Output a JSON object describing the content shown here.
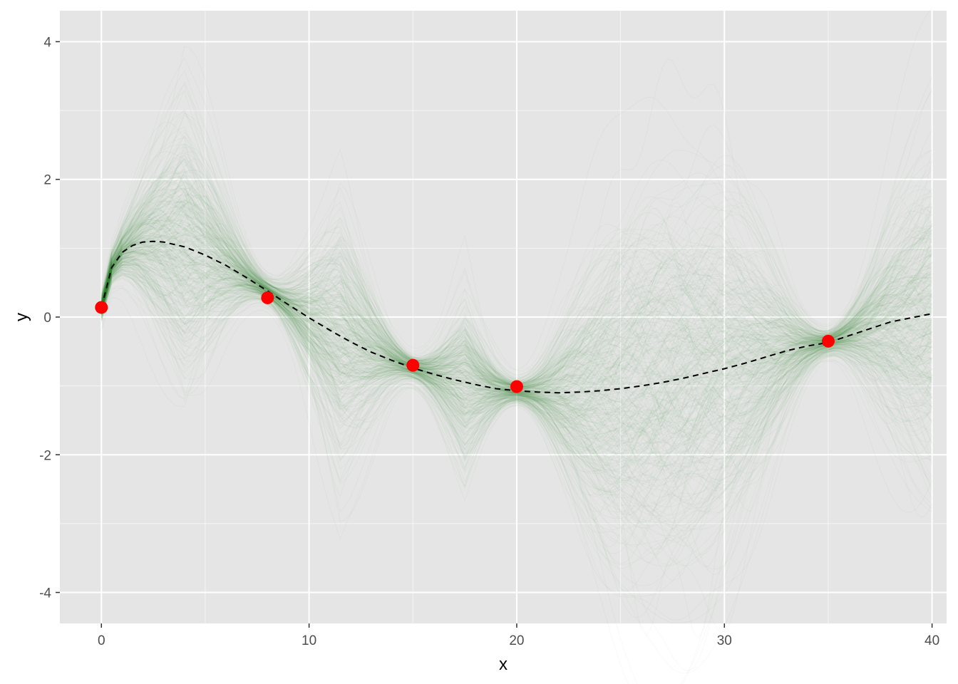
{
  "chart_data": {
    "type": "line",
    "title": "",
    "xlabel": "x",
    "ylabel": "y",
    "xlim": [
      -2,
      40.7
    ],
    "ylim": [
      -4.45,
      4.45
    ],
    "x_ticks": [
      {
        "value": 0,
        "label": "0"
      },
      {
        "value": 10,
        "label": "10"
      },
      {
        "value": 20,
        "label": "20"
      },
      {
        "value": 30,
        "label": "30"
      },
      {
        "value": 40,
        "label": "40"
      }
    ],
    "y_ticks": [
      {
        "value": -4,
        "label": "-4"
      },
      {
        "value": -2,
        "label": "-2"
      },
      {
        "value": 0,
        "label": "0"
      },
      {
        "value": 2,
        "label": "2"
      },
      {
        "value": 4,
        "label": "4"
      }
    ],
    "grid": true,
    "legend": "none",
    "colors": {
      "panel": "#e5e5e5",
      "grid_major": "#ffffff",
      "samples": "#2e8b2e",
      "mean_line": "#000000",
      "points": "#ff0000"
    },
    "observations": {
      "x": [
        0,
        8,
        15,
        20,
        35
      ],
      "y": [
        0.14,
        0.28,
        -0.7,
        -1.01,
        -0.35
      ]
    },
    "mean_curve": {
      "style": "dashed",
      "x": [
        0,
        0.5,
        1,
        1.5,
        2,
        2.5,
        3,
        4,
        5,
        6,
        7,
        8,
        9,
        10,
        11,
        12,
        13,
        14,
        15,
        16,
        17,
        18,
        19,
        20,
        21,
        22,
        23,
        24,
        25,
        26,
        27,
        28,
        29,
        30,
        31,
        32,
        33,
        34,
        35,
        36,
        37,
        38,
        39,
        40
      ],
      "y": [
        0.14,
        0.72,
        0.94,
        1.04,
        1.09,
        1.1,
        1.09,
        1.02,
        0.9,
        0.75,
        0.57,
        0.38,
        0.18,
        -0.01,
        -0.19,
        -0.36,
        -0.51,
        -0.63,
        -0.74,
        -0.83,
        -0.91,
        -0.98,
        -1.04,
        -1.07,
        -1.09,
        -1.1,
        -1.09,
        -1.07,
        -1.04,
        -1.0,
        -0.95,
        -0.89,
        -0.82,
        -0.75,
        -0.67,
        -0.58,
        -0.49,
        -0.42,
        -0.37,
        -0.27,
        -0.17,
        -0.07,
        -0.01,
        0.05
      ]
    },
    "posterior_samples": {
      "count": 400,
      "opacity": 0.035,
      "amplitude_scale": 0.9
    }
  }
}
